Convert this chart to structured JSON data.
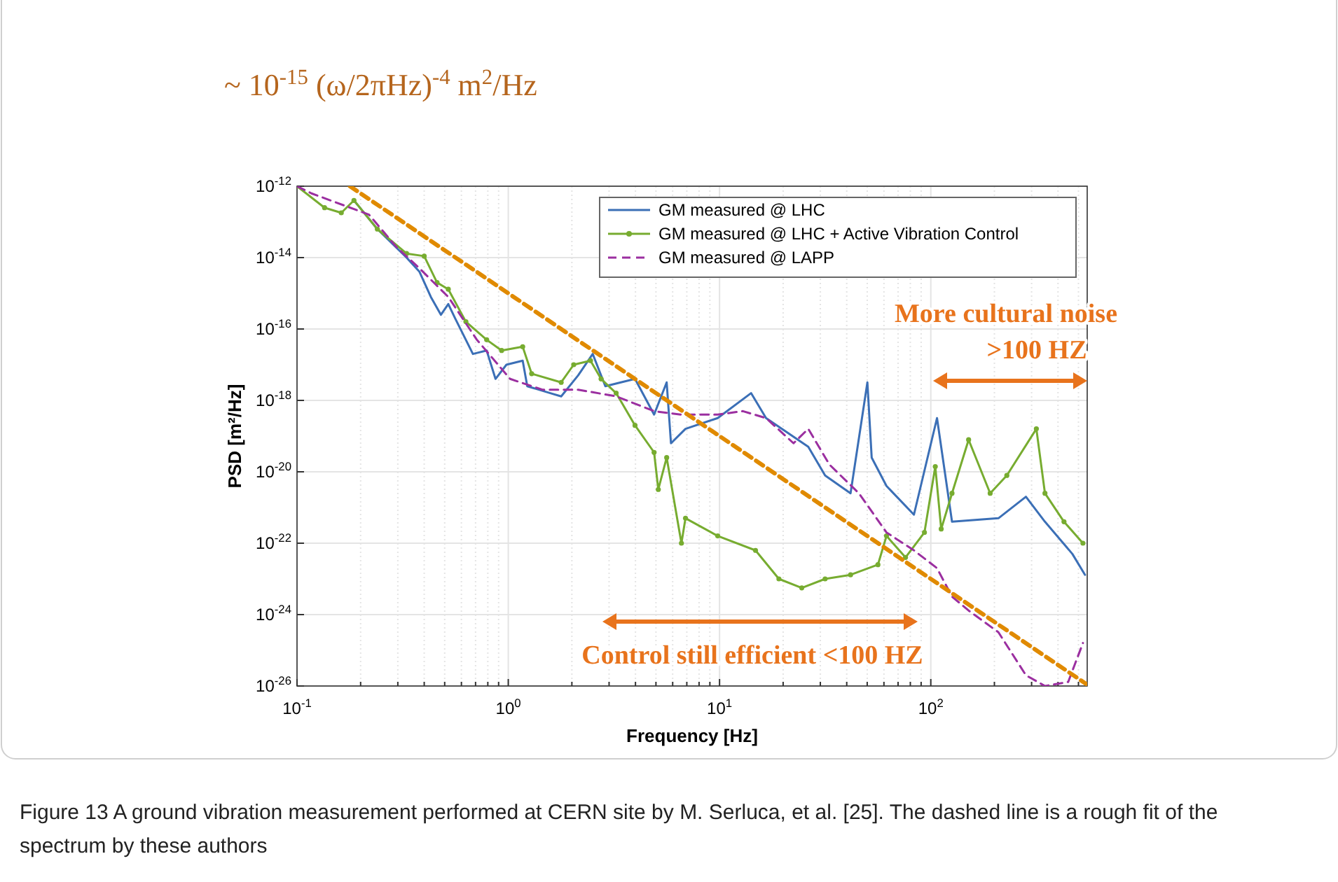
{
  "chart_data": {
    "type": "line",
    "xlabel": "Frequency [Hz]",
    "ylabel": "PSD [m²/Hz]",
    "log": "xy",
    "grid": true,
    "legend": "top right",
    "line_style": "solid",
    "marker": "none",
    "xlim": [
      0.1,
      550
    ],
    "xticks": [
      {
        "value": 0.1,
        "label": "10$^{-1}$"
      },
      {
        "value": 1,
        "label": "10$^{0}$"
      },
      {
        "value": 10,
        "label": "10$^{1}$"
      },
      {
        "value": 100,
        "label": "10$^{2}$"
      }
    ],
    "ylim": [
      1e-26,
      1e-12
    ],
    "yticks": [
      {
        "value": 1e-26,
        "label": "10$^{-26}$"
      },
      {
        "value": 1e-24,
        "label": "10$^{-24}$"
      },
      {
        "value": 1e-22,
        "label": "10$^{-22}$"
      },
      {
        "value": 1e-20,
        "label": "10$^{-20}$"
      },
      {
        "value": 1e-18,
        "label": "10$^{-18}$"
      },
      {
        "value": 1e-16,
        "label": "10$^{-16}$"
      },
      {
        "value": 1e-14,
        "label": "10$^{-14}$"
      },
      {
        "value": 1e-12,
        "label": "10$^{-12}$"
      }
    ],
    "series": [
      {
        "name": "GM measured @ LHC",
        "color": "#3b6fb6",
        "x": [
          0.186,
          0.24,
          0.33,
          0.38,
          0.43,
          0.48,
          0.52,
          0.56,
          0.68,
          0.79,
          0.87,
          0.98,
          1.17,
          1.23,
          1.58,
          1.78,
          2.14,
          2.51,
          2.88,
          3.98,
          4.9,
          5.62,
          5.89,
          6.9,
          9.8,
          14.1,
          16.6,
          26.3,
          31.6,
          41.7,
          50.1,
          52.5,
          61.7,
          83.2,
          107,
          126,
          209,
          282,
          347,
          468,
          537
        ],
        "values": [
          4e-13,
          6.3e-14,
          1e-14,
          4e-15,
          7.9e-16,
          2.5e-16,
          5e-16,
          2e-16,
          2e-17,
          2.5e-17,
          4e-18,
          1e-17,
          1.3e-17,
          2.5e-18,
          1.6e-18,
          1.3e-18,
          5e-18,
          2e-17,
          2.5e-18,
          4e-18,
          4e-19,
          3.2e-18,
          6.3e-20,
          1.6e-19,
          3.2e-19,
          1.6e-18,
          3.2e-19,
          5e-20,
          7.9e-21,
          2.5e-21,
          3.2e-18,
          2.5e-20,
          4e-21,
          6.3e-22,
          3.2e-19,
          4e-22,
          5e-22,
          2e-21,
          4e-22,
          5e-23,
          1.3e-23
        ]
      },
      {
        "name": "GM measured @ LHC + Active Vibration Control",
        "color": "#77ac30",
        "marker": "circle",
        "x": [
          0.1,
          0.135,
          0.162,
          0.186,
          0.24,
          0.33,
          0.4,
          0.46,
          0.52,
          0.63,
          0.79,
          0.93,
          1.17,
          1.29,
          1.78,
          2.04,
          2.45,
          2.75,
          3.24,
          3.98,
          4.9,
          5.13,
          5.62,
          6.6,
          6.9,
          9.8,
          14.8,
          19.1,
          24.5,
          31.6,
          41.7,
          56.2,
          61.7,
          75.9,
          93.3,
          105,
          112,
          126,
          151,
          191,
          229,
          316,
          347,
          427,
          525
        ],
        "values": [
          1e-12,
          2.5e-13,
          1.8e-13,
          4e-13,
          6.3e-14,
          1.3e-14,
          1.1e-14,
          2e-15,
          1.3e-15,
          1.6e-16,
          5e-17,
          2.5e-17,
          3.2e-17,
          5.6e-18,
          3.2e-18,
          1e-17,
          1.3e-17,
          4e-18,
          1.6e-18,
          2e-19,
          3.5e-20,
          3.2e-21,
          2.5e-20,
          1e-22,
          5e-22,
          1.6e-22,
          6.3e-23,
          1e-23,
          5.6e-24,
          1e-23,
          1.3e-23,
          2.5e-23,
          1.6e-22,
          4e-23,
          2e-22,
          1.4e-20,
          2.5e-22,
          2.5e-21,
          7.9e-20,
          2.5e-21,
          7.9e-21,
          1.6e-19,
          2.5e-21,
          4e-22,
          1e-22
        ]
      },
      {
        "name": "GM measured @ LAPP",
        "color": "#9b2fa0",
        "line_style": "dashed",
        "x": [
          0.1,
          0.117,
          0.219,
          0.295,
          0.38,
          0.52,
          0.71,
          1.02,
          1.45,
          2.14,
          3.24,
          4.9,
          6.6,
          9.8,
          12.9,
          16.6,
          22.4,
          26.3,
          33.1,
          45.7,
          61.7,
          83.2,
          107,
          126,
          151,
          209,
          282,
          347,
          447,
          525
        ],
        "values": [
          1e-12,
          6.3e-13,
          1.6e-13,
          2e-14,
          5e-15,
          7.9e-16,
          5e-17,
          4e-18,
          2e-18,
          2e-18,
          1.3e-18,
          5e-19,
          4e-19,
          4e-19,
          5e-19,
          3.2e-19,
          6.3e-20,
          1.6e-19,
          1.6e-20,
          2.5e-21,
          2e-22,
          6.3e-23,
          2e-23,
          3.2e-24,
          1.3e-24,
          3.2e-25,
          2e-26,
          1e-26,
          1.3e-26,
          1.6e-25
        ]
      },
      {
        "type": "line",
        "color": "#e08a00",
        "line_style": "dashed",
        "x": [
          0.178,
          550
        ],
        "values": [
          1e-12,
          1.09e-26
        ]
      }
    ],
    "annotations": [
      "~ 10$^{-15}$ (ω/2πHz)$^{-4}$ m$^{2}$/Hz",
      "More cultural noise\n>100 HZ",
      "Control still efficient <100 HZ",
      "Figure 13  A ground vibration measurement performed at CERN site by M. Serluca, et al. [25]. The dashed line is a rough fit of the spectrum by these authors"
    ]
  }
}
